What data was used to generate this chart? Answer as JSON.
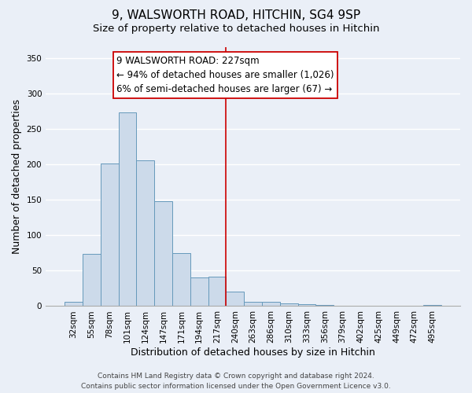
{
  "title": "9, WALSWORTH ROAD, HITCHIN, SG4 9SP",
  "subtitle": "Size of property relative to detached houses in Hitchin",
  "xlabel": "Distribution of detached houses by size in Hitchin",
  "ylabel": "Number of detached properties",
  "bar_color": "#ccdaea",
  "bar_edge_color": "#6699bb",
  "background_color": "#eaeff7",
  "grid_color": "#ffffff",
  "categories": [
    "32sqm",
    "55sqm",
    "78sqm",
    "101sqm",
    "124sqm",
    "147sqm",
    "171sqm",
    "194sqm",
    "217sqm",
    "240sqm",
    "263sqm",
    "286sqm",
    "310sqm",
    "333sqm",
    "356sqm",
    "379sqm",
    "402sqm",
    "425sqm",
    "449sqm",
    "472sqm",
    "495sqm"
  ],
  "values": [
    6,
    74,
    201,
    273,
    205,
    148,
    75,
    40,
    41,
    20,
    6,
    6,
    4,
    3,
    2,
    0,
    0,
    0,
    0,
    0,
    2
  ],
  "ylim": [
    0,
    365
  ],
  "yticks": [
    0,
    50,
    100,
    150,
    200,
    250,
    300,
    350
  ],
  "property_line_x": 8.5,
  "property_label": "9 WALSWORTH ROAD: 227sqm",
  "annotation_line1": "← 94% of detached houses are smaller (1,026)",
  "annotation_line2": "6% of semi-detached houses are larger (67) →",
  "box_facecolor": "#ffffff",
  "box_edgecolor": "#cc0000",
  "line_color": "#cc0000",
  "footer_line1": "Contains HM Land Registry data © Crown copyright and database right 2024.",
  "footer_line2": "Contains public sector information licensed under the Open Government Licence v3.0.",
  "title_fontsize": 11,
  "subtitle_fontsize": 9.5,
  "axis_label_fontsize": 9,
  "tick_fontsize": 7.5,
  "annotation_fontsize": 8.5,
  "footer_fontsize": 6.5
}
